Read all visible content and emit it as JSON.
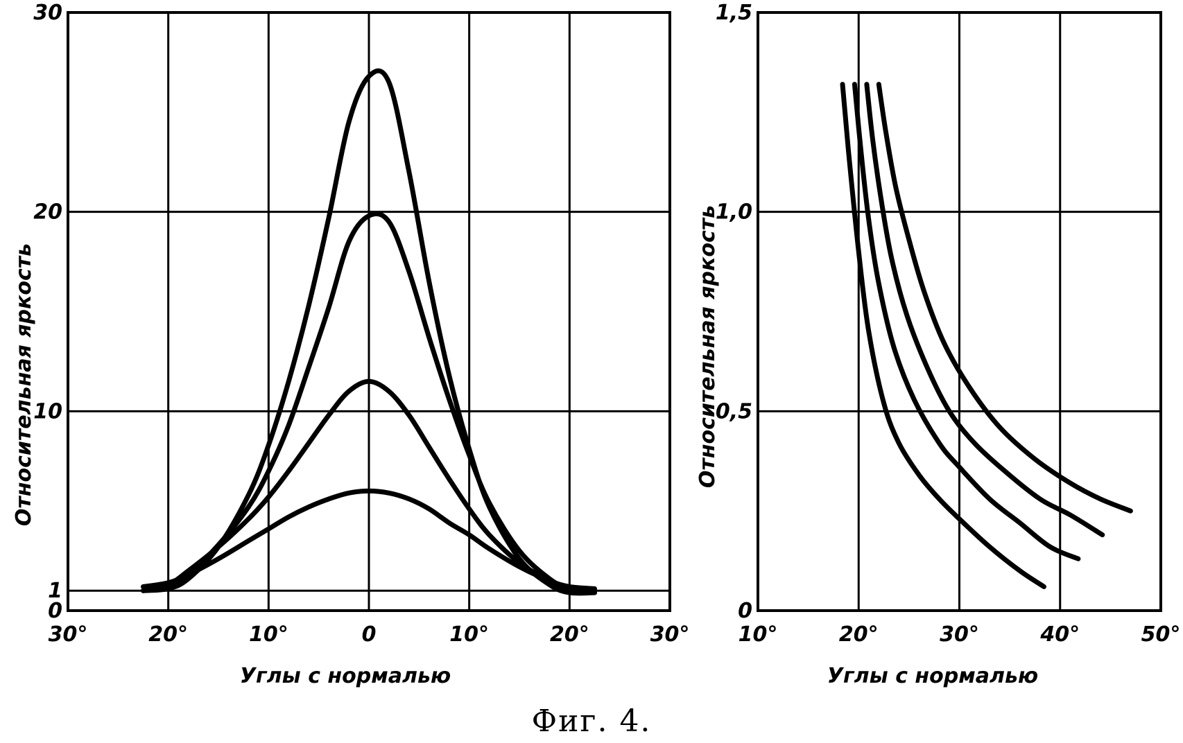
{
  "chart_data": [
    {
      "type": "line",
      "xlabel": "Углы с нормалью",
      "ylabel": "Относительная яркость",
      "xlim": [
        -30,
        30
      ],
      "ylim": [
        0,
        30
      ],
      "x_ticks": [
        -30,
        -20,
        -10,
        0,
        10,
        20,
        30
      ],
      "x_tick_labels": [
        "30°",
        "20°",
        "10°",
        "0",
        "10°",
        "20°",
        "30°"
      ],
      "y_ticks": [
        0,
        1,
        10,
        20,
        30
      ],
      "y_tick_labels": [
        "0",
        "1",
        "10",
        "20",
        "30"
      ],
      "grid": true,
      "baseline": 1,
      "series": [
        {
          "x": [
            -22.5,
            -20,
            -18,
            -15,
            -12,
            -10,
            -8,
            -6,
            -4,
            -2,
            0,
            2,
            4,
            6,
            8,
            10,
            12,
            15,
            18,
            20,
            22.5
          ],
          "y": [
            1.2,
            1.4,
            1.8,
            2.6,
            3.5,
            4.1,
            4.7,
            5.2,
            5.6,
            5.9,
            6.0,
            5.9,
            5.6,
            5.1,
            4.4,
            3.8,
            3.1,
            2.2,
            1.5,
            1.2,
            1.1
          ]
        },
        {
          "x": [
            -22.5,
            -20,
            -18,
            -15,
            -12,
            -10,
            -8,
            -6,
            -4,
            -2,
            0,
            2,
            4,
            6,
            8,
            10,
            12,
            15,
            18,
            20,
            22.5
          ],
          "y": [
            1.0,
            1.3,
            2.0,
            3.2,
            4.6,
            5.7,
            7.0,
            8.4,
            9.8,
            11.0,
            11.5,
            11.0,
            9.8,
            8.2,
            6.6,
            5.1,
            3.8,
            2.4,
            1.5,
            1.1,
            1.0
          ]
        },
        {
          "x": [
            -22.5,
            -20,
            -18,
            -15,
            -12,
            -10,
            -8,
            -6,
            -4,
            -2,
            0,
            2,
            4,
            6,
            8,
            10,
            12,
            15,
            18,
            20,
            22.5
          ],
          "y": [
            1.0,
            1.2,
            1.8,
            3.3,
            5.2,
            7.0,
            9.3,
            12.2,
            15.2,
            18.5,
            19.8,
            19.5,
            17.0,
            13.7,
            10.6,
            7.8,
            5.4,
            3.0,
            1.6,
            1.1,
            0.9
          ]
        },
        {
          "x": [
            -22.5,
            -20,
            -18,
            -15,
            -12,
            -10,
            -8,
            -6,
            -4,
            -2,
            0,
            2,
            4,
            6,
            8,
            10,
            12,
            15,
            18,
            20,
            22.5
          ],
          "y": [
            1.0,
            1.1,
            1.6,
            3.2,
            5.8,
            8.3,
            11.5,
            15.3,
            19.7,
            24.5,
            26.8,
            26.5,
            22.0,
            16.5,
            11.8,
            8.1,
            5.2,
            2.6,
            1.3,
            0.9,
            0.9
          ]
        }
      ]
    },
    {
      "type": "line",
      "xlabel": "Углы с нормалью",
      "ylabel": "Относительная яркость",
      "xlim": [
        10,
        50
      ],
      "ylim": [
        0,
        1.5
      ],
      "x_ticks": [
        10,
        20,
        30,
        40,
        50
      ],
      "x_tick_labels": [
        "10°",
        "20°",
        "30°",
        "40°",
        "50°"
      ],
      "y_ticks": [
        0,
        0.5,
        1.0,
        1.5
      ],
      "y_tick_labels": [
        "0",
        "0,5",
        "1,0",
        "1,5"
      ],
      "grid": true,
      "series": [
        {
          "x": [
            18.4,
            19.0,
            20.0,
            21.0,
            22.5,
            24.0,
            26.0,
            28.0,
            30.0,
            33.0,
            36.0,
            38.4
          ],
          "y": [
            1.32,
            1.15,
            0.9,
            0.7,
            0.52,
            0.42,
            0.34,
            0.28,
            0.23,
            0.16,
            0.1,
            0.06
          ]
        },
        {
          "x": [
            19.6,
            20.2,
            21.0,
            22.0,
            23.5,
            25.5,
            28.0,
            30.0,
            33.0,
            36.0,
            39.0,
            41.8
          ],
          "y": [
            1.32,
            1.16,
            0.98,
            0.82,
            0.66,
            0.53,
            0.42,
            0.36,
            0.28,
            0.22,
            0.16,
            0.13
          ]
        },
        {
          "x": [
            20.8,
            21.4,
            22.3,
            23.3,
            24.8,
            26.8,
            29.0,
            31.5,
            34.5,
            38.0,
            41.0,
            44.2
          ],
          "y": [
            1.32,
            1.18,
            1.02,
            0.88,
            0.74,
            0.61,
            0.5,
            0.42,
            0.35,
            0.28,
            0.24,
            0.19
          ]
        },
        {
          "x": [
            22.0,
            22.7,
            23.7,
            25.0,
            26.5,
            28.5,
            31.0,
            34.0,
            37.5,
            41.0,
            44.0,
            47.0
          ],
          "y": [
            1.32,
            1.2,
            1.06,
            0.93,
            0.8,
            0.67,
            0.56,
            0.46,
            0.38,
            0.32,
            0.28,
            0.25
          ]
        }
      ]
    }
  ],
  "caption": "Фиг. 4."
}
